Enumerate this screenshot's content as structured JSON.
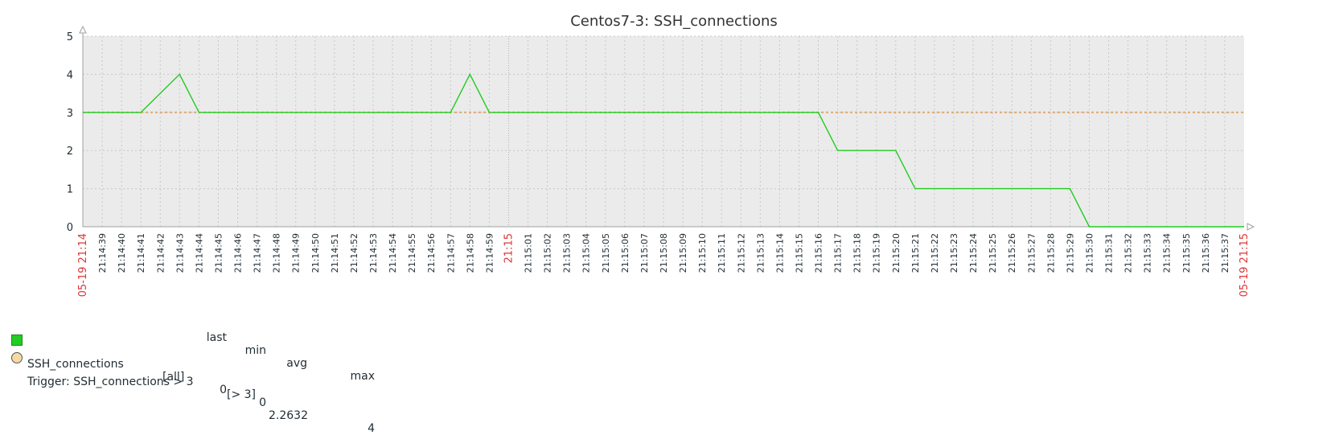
{
  "chart_data": {
    "type": "line",
    "title": "Centos7-3: SSH_connections",
    "ylim": [
      0,
      5
    ],
    "yticks": [
      "0",
      "1",
      "2",
      "3",
      "4",
      "5"
    ],
    "start_label": "05-19 21:14",
    "end_label": "05-19 21:15",
    "hour_mark_label": "21:15",
    "x_tick_labels": [
      "21:14:39",
      "21:14:40",
      "21:14:41",
      "21:14:42",
      "21:14:43",
      "21:14:44",
      "21:14:45",
      "21:14:46",
      "21:14:47",
      "21:14:48",
      "21:14:49",
      "21:14:50",
      "21:14:51",
      "21:14:52",
      "21:14:53",
      "21:14:54",
      "21:14:55",
      "21:14:56",
      "21:14:57",
      "21:14:58",
      "21:14:59",
      "21:15",
      "21:15:01",
      "21:15:02",
      "21:15:03",
      "21:15:04",
      "21:15:05",
      "21:15:06",
      "21:15:07",
      "21:15:08",
      "21:15:09",
      "21:15:10",
      "21:15:11",
      "21:15:12",
      "21:15:13",
      "21:15:14",
      "21:15:15",
      "21:15:16",
      "21:15:17",
      "21:15:18",
      "21:15:19",
      "21:15:20",
      "21:15:21",
      "21:15:22",
      "21:15:23",
      "21:15:24",
      "21:15:25",
      "21:15:26",
      "21:15:27",
      "21:15:28",
      "21:15:29",
      "21:15:30",
      "21:15:31",
      "21:15:32",
      "21:15:33",
      "21:15:34",
      "21:15:35",
      "21:15:36",
      "21:15:37"
    ],
    "series": [
      {
        "name": "SSH_connections",
        "color": "#22cc22",
        "x": [
          "21:14:38",
          "21:14:41",
          "21:14:43",
          "21:14:44",
          "21:14:57",
          "21:14:58",
          "21:14:59",
          "21:15:16",
          "21:15:17",
          "21:15:20",
          "21:15:21",
          "21:15:29",
          "21:15:30",
          "21:15:38"
        ],
        "values": [
          3,
          3,
          4,
          3,
          3,
          4,
          3,
          3,
          2,
          2,
          1,
          1,
          0,
          0
        ]
      }
    ],
    "trigger": {
      "name": "Trigger: SSH_connections > 3",
      "threshold": 3,
      "color": "#e0a870",
      "condition": "[> 3]"
    },
    "legend": {
      "headers": [
        "last",
        "min",
        "avg",
        "max"
      ],
      "item_name": "SSH_connections",
      "function": "[all]",
      "last": "0",
      "min": "0",
      "avg": "2.2632",
      "max": "4"
    },
    "colors": {
      "plot_bg": "#ebebeb",
      "grid": "#c8c8c8",
      "axis": "#a0a0a0",
      "text": "#1f2c33",
      "time_mark": "#dd3333"
    }
  }
}
